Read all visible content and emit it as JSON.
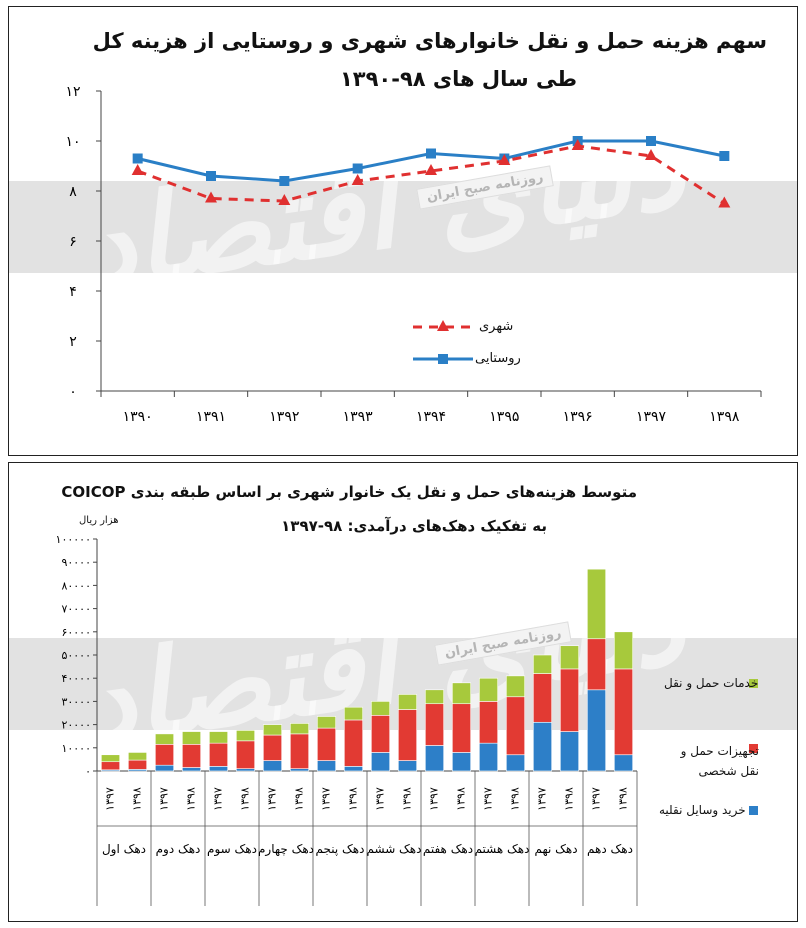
{
  "top": {
    "title_line1": "سهم هزینه حمل و نقل خانوارهای شهری و روستایی از هزینه کل",
    "title_line2": "طی سال های ۹۸-۱۳۹۰",
    "legend_urban": "شهری",
    "legend_rural": "روستایی"
  },
  "bottom": {
    "title_line1": "متوسط هزینه‌های حمل و نقل یک خانوار شهری بر اساس طبقه بندی COICOP",
    "title_line2": "به تفکیک دهک‌های درآمدی: ۹۸-۱۳۹۷",
    "unit": "هزار ریال",
    "legend_services": "خدمات حمل و نقل",
    "legend_equipment": "تجهیزات حمل و نقل شخصی",
    "legend_purchase": "خرید وسایل نقلیه"
  },
  "watermark": {
    "stamp": "روزنامه صبح ایران",
    "logo": "دنیای اقتصاد"
  },
  "colors": {
    "urban": "#e03030",
    "rural": "#2a7fc6",
    "services": "#a7c93c",
    "equipment": "#e23a33",
    "purchase": "#2d7fc8",
    "grid": "#cccccc"
  },
  "chart_data": [
    {
      "type": "line",
      "x": [
        "۱۳۹۰",
        "۱۳۹۱",
        "۱۳۹۲",
        "۱۳۹۳",
        "۱۳۹۴",
        "۱۳۹۵",
        "۱۳۹۶",
        "۱۳۹۷",
        "۱۳۹۸"
      ],
      "y_ticks": [
        "۰",
        "۲",
        "۴",
        "۶",
        "۸",
        "۱۰",
        "۱۲"
      ],
      "ylim": [
        0,
        12
      ],
      "grid": false,
      "legend_position": "lower-right",
      "series": [
        {
          "name": "شهری",
          "style": "dashed-triangle",
          "values": [
            8.8,
            7.7,
            7.6,
            8.4,
            8.8,
            9.2,
            9.8,
            9.4,
            7.5
          ]
        },
        {
          "name": "روستایی",
          "style": "solid-square",
          "values": [
            9.3,
            8.6,
            8.4,
            8.9,
            9.5,
            9.3,
            10.0,
            10.0,
            9.4
          ]
        }
      ]
    },
    {
      "type": "bar",
      "stacked": true,
      "categories": [
        "۱۳۹۷",
        "۱۳۹۸",
        "۱۳۹۷",
        "۱۳۹۸",
        "۱۳۹۷",
        "۱۳۹۸",
        "۱۳۹۷",
        "۱۳۹۸",
        "۱۳۹۷",
        "۱۳۹۸",
        "۱۳۹۷",
        "۱۳۹۸",
        "۱۳۹۷",
        "۱۳۹۸",
        "۱۳۹۷",
        "۱۳۹۸",
        "۱۳۹۷",
        "۱۳۹۸",
        "۱۳۹۷",
        "۱۳۹۸"
      ],
      "groups": [
        "دهک اول",
        "دهک دوم",
        "دهک سوم",
        "دهک چهارم",
        "دهک پنجم",
        "دهک ششم",
        "دهک هفتم",
        "دهک هشتم",
        "دهک نهم",
        "دهک دهم"
      ],
      "y_ticks": [
        "۰",
        "۱۰۰۰۰",
        "۲۰۰۰۰",
        "۳۰۰۰۰",
        "۴۰۰۰۰",
        "۵۰۰۰۰",
        "۶۰۰۰۰",
        "۷۰۰۰۰",
        "۸۰۰۰۰",
        "۹۰۰۰۰",
        "۱۰۰۰۰۰"
      ],
      "ylim": [
        0,
        100000
      ],
      "legend_position": "right",
      "series": [
        {
          "name": "خرید وسایل نقلیه",
          "values": [
            500,
            700,
            2500,
            1500,
            2000,
            1000,
            4500,
            1000,
            4500,
            2000,
            8000,
            4500,
            11000,
            8000,
            12000,
            7000,
            21000,
            17000,
            35000,
            7000
          ]
        },
        {
          "name": "تجهیزات حمل و نقل شخصی",
          "values": [
            3500,
            4000,
            9000,
            10000,
            10000,
            12000,
            11000,
            15000,
            14000,
            20000,
            16000,
            22000,
            18000,
            21000,
            18000,
            25000,
            21000,
            27000,
            22000,
            37000
          ]
        },
        {
          "name": "خدمات حمل و نقل",
          "values": [
            3000,
            3300,
            4500,
            5500,
            5000,
            4500,
            4500,
            4500,
            5000,
            5500,
            6000,
            6500,
            6000,
            9000,
            10000,
            9000,
            8000,
            10000,
            30000,
            16000
          ]
        }
      ]
    }
  ]
}
